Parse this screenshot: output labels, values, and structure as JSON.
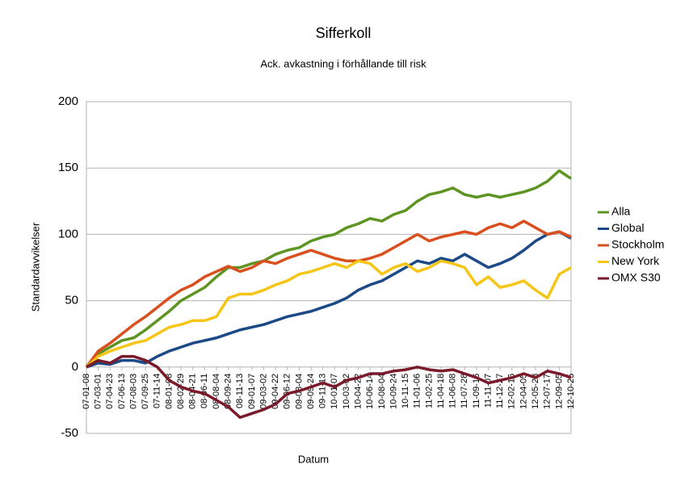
{
  "chart_data": {
    "type": "line",
    "title": "Sifferkoll",
    "subtitle": "Ack. avkastning i förhållande till risk",
    "x_label": "Datum",
    "y_label": "Standardavvikelser",
    "categories": [
      "07-01-08",
      "07-03-01",
      "07-04-23",
      "07-06-13",
      "07-08-03",
      "07-09-25",
      "07-11-14",
      "08-01-08",
      "08-02-29",
      "08-04-21",
      "08-06-11",
      "08-08-04",
      "08-09-24",
      "08-11-13",
      "09-01-07",
      "09-03-02",
      "09-04-22",
      "09-06-12",
      "09-08-04",
      "09-09-24",
      "09-11-13",
      "10-01-07",
      "10-03-02",
      "10-04-22",
      "10-06-14",
      "10-08-04",
      "10-09-24",
      "10-11-15",
      "11-01-06",
      "11-02-25",
      "11-04-18",
      "11-06-08",
      "11-07-28",
      "11-09-16",
      "11-11-07",
      "11-12-27",
      "12-02-16",
      "12-04-05",
      "12-05-28",
      "12-07-17",
      "12-09-05",
      "12-10-25"
    ],
    "series": [
      {
        "name": "Alla",
        "color": "#5e9422",
        "values": [
          0,
          10,
          15,
          20,
          22,
          28,
          35,
          42,
          50,
          55,
          60,
          68,
          75,
          75,
          78,
          80,
          85,
          88,
          90,
          95,
          98,
          100,
          105,
          108,
          112,
          110,
          115,
          118,
          125,
          130,
          132,
          135,
          130,
          128,
          130,
          128,
          130,
          132,
          135,
          140,
          148,
          142
        ]
      },
      {
        "name": "Global",
        "color": "#1c4a87",
        "values": [
          0,
          3,
          2,
          5,
          5,
          3,
          8,
          12,
          15,
          18,
          20,
          22,
          25,
          28,
          30,
          32,
          35,
          38,
          40,
          42,
          45,
          48,
          52,
          58,
          62,
          65,
          70,
          75,
          80,
          78,
          82,
          80,
          85,
          80,
          75,
          78,
          82,
          88,
          95,
          100,
          102,
          97
        ]
      },
      {
        "name": "Stockholm",
        "color": "#d9501e",
        "values": [
          0,
          12,
          18,
          25,
          32,
          38,
          45,
          52,
          58,
          62,
          68,
          72,
          76,
          72,
          75,
          80,
          78,
          82,
          85,
          88,
          85,
          82,
          80,
          80,
          82,
          85,
          90,
          95,
          100,
          95,
          98,
          100,
          102,
          100,
          105,
          108,
          105,
          110,
          105,
          100,
          102,
          98
        ]
      },
      {
        "name": "New York",
        "color": "#f5c518",
        "values": [
          0,
          8,
          12,
          15,
          18,
          20,
          25,
          30,
          32,
          35,
          35,
          38,
          52,
          55,
          55,
          58,
          62,
          65,
          70,
          72,
          75,
          78,
          75,
          80,
          78,
          70,
          75,
          78,
          72,
          75,
          80,
          78,
          75,
          62,
          68,
          60,
          62,
          65,
          58,
          52,
          70,
          75
        ]
      },
      {
        "name": "OMX S30",
        "color": "#7a1a2a",
        "values": [
          0,
          5,
          3,
          8,
          8,
          5,
          0,
          -10,
          -15,
          -18,
          -20,
          -25,
          -30,
          -38,
          -35,
          -32,
          -28,
          -20,
          -18,
          -15,
          -12,
          -15,
          -10,
          -8,
          -5,
          -5,
          -3,
          -2,
          0,
          -2,
          -3,
          -2,
          -5,
          -8,
          -12,
          -10,
          -8,
          -5,
          -8,
          -3,
          -5,
          -8
        ]
      }
    ],
    "ylim": [
      -50,
      200
    ],
    "yticks": [
      -50,
      0,
      50,
      100,
      150,
      200
    ],
    "grid": true,
    "legend": "right"
  }
}
